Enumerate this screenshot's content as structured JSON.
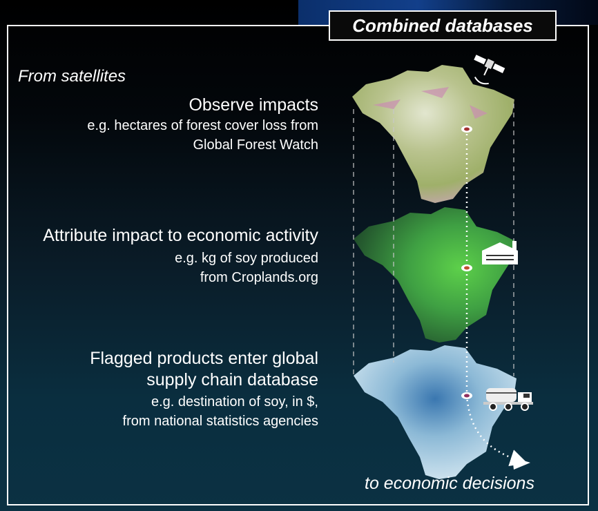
{
  "header": {
    "title": "Combined databases"
  },
  "left_panel": {
    "source_label": "From satellites",
    "steps": [
      {
        "heading": "Observe impacts",
        "detail_lines": [
          "e.g. hectares of forest cover loss from",
          "Global Forest Watch"
        ]
      },
      {
        "heading": "Attribute impact to economic activity",
        "detail_lines": [
          "e.g. kg of soy produced",
          "from Croplands.org"
        ]
      },
      {
        "heading_lines": [
          "Flagged products enter global",
          "supply chain database"
        ],
        "detail_lines": [
          "e.g. destination of soy, in $,",
          "from national statistics agencies"
        ]
      }
    ]
  },
  "footer": {
    "outcome": "to economic decisions"
  },
  "layers": [
    {
      "name": "forest-cover-loss-map",
      "color": "#9fb06a"
    },
    {
      "name": "soy-croplands-map",
      "color": "#3fa043"
    },
    {
      "name": "supply-chain-map",
      "color": "#b9d7e6"
    }
  ],
  "icons": [
    "satellite-icon",
    "factory-icon",
    "truck-icon",
    "arrow-icon"
  ]
}
